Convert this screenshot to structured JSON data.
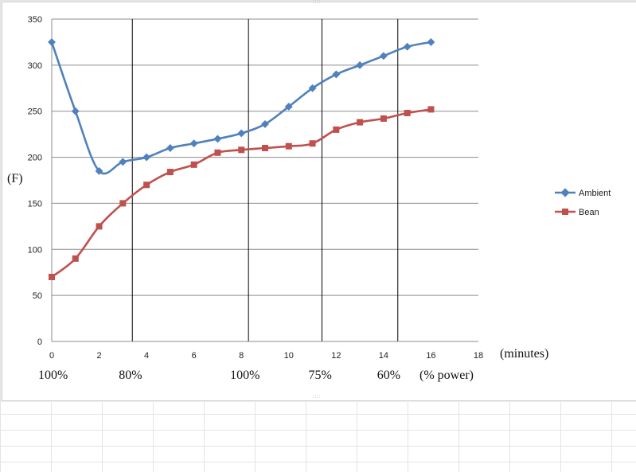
{
  "chart_data": {
    "type": "line",
    "title": "",
    "xlabel": "(minutes)",
    "ylabel": "(F)",
    "xlim": [
      0,
      18
    ],
    "ylim": [
      0,
      350
    ],
    "x_ticks": [
      0,
      2,
      4,
      6,
      8,
      10,
      12,
      14,
      16,
      18
    ],
    "y_ticks": [
      0,
      50,
      100,
      150,
      200,
      250,
      300,
      350
    ],
    "grid": "horizontal",
    "legend_position": "right",
    "x": [
      0,
      1,
      2,
      3,
      4,
      5,
      6,
      7,
      8,
      9,
      10,
      11,
      12,
      13,
      14,
      15,
      16
    ],
    "series": [
      {
        "name": "Ambient",
        "color": "#4f81bd",
        "marker": "diamond",
        "values": [
          325,
          250,
          185,
          195,
          200,
          210,
          215,
          220,
          226,
          236,
          255,
          275,
          290,
          300,
          310,
          320,
          325
        ]
      },
      {
        "name": "Bean",
        "color": "#c0504d",
        "marker": "square",
        "values": [
          70,
          90,
          125,
          150,
          170,
          184,
          192,
          205,
          208,
          210,
          212,
          215,
          230,
          238,
          242,
          248,
          252
        ]
      }
    ],
    "power_phase_boundaries": [
      3.4,
      8.3,
      11.4,
      14.6
    ],
    "power_labels": [
      "100%",
      "80%",
      "100%",
      "75%",
      "60%"
    ],
    "power_label_x": [
      0.1,
      3.5,
      8.2,
      11.5,
      14.4
    ],
    "power_axis_label": "(% power)"
  }
}
